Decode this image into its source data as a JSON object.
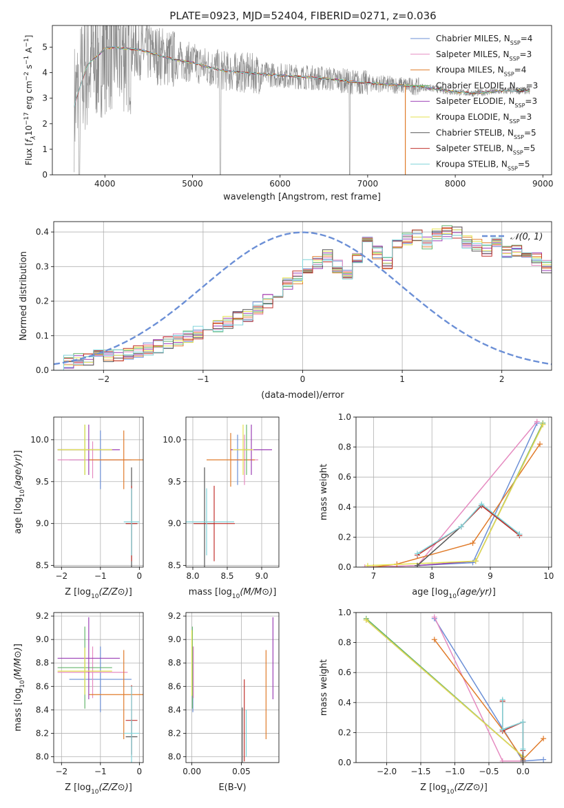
{
  "figure_title": "PLATE=0923, MJD=52404, FIBERID=0271, z=0.036",
  "colors": {
    "chabrier_miles": "#6b8fd6",
    "salpeter_miles": "#e58ac0",
    "kroupa_miles": "#e07b2a",
    "chabrier_elodie": "#63b46b",
    "salpeter_elodie": "#9b3fb5",
    "kroupa_elodie": "#e4e24d",
    "chabrier_stelib": "#555555",
    "salpeter_stelib": "#c0302b",
    "kroupa_stelib": "#7fd3d9",
    "observed": "#888888",
    "normal": "#6b8fd6"
  },
  "chart_data": [
    {
      "id": "spectrum",
      "type": "line",
      "title": "PLATE=0923, MJD=52404, FIBERID=0271, z=0.036",
      "xlabel": "wavelength [Angstrom, rest frame]",
      "ylabel": "Flux [f_λ 10^-17 erg cm^-2 s^-1 A^-1]",
      "xlim": [
        3400,
        9100
      ],
      "ylim": [
        0,
        5.85
      ],
      "xticks": [
        4000,
        5000,
        6000,
        7000,
        8000,
        9000
      ],
      "yticks": [
        0,
        1,
        2,
        3,
        4,
        5
      ],
      "legend_position": "top-right",
      "legend": [
        {
          "label": "Chabrier MILES, N",
          "sub": "SSP",
          "suffix": "=4",
          "color_key": "chabrier_miles"
        },
        {
          "label": "Salpeter MILES, N",
          "sub": "SSP",
          "suffix": "=3",
          "color_key": "salpeter_miles"
        },
        {
          "label": "Kroupa MILES, N",
          "sub": "SSP",
          "suffix": "=4",
          "color_key": "kroupa_miles"
        },
        {
          "label": "Chabrier ELODIE, N",
          "sub": "SSP",
          "suffix": "=3",
          "color_key": "chabrier_elodie"
        },
        {
          "label": "Salpeter ELODIE, N",
          "sub": "SSP",
          "suffix": "=3",
          "color_key": "salpeter_elodie"
        },
        {
          "label": "Kroupa ELODIE, N",
          "sub": "SSP",
          "suffix": "=3",
          "color_key": "kroupa_elodie"
        },
        {
          "label": "Chabrier STELIB, N",
          "sub": "SSP",
          "suffix": "=5",
          "color_key": "chabrier_stelib"
        },
        {
          "label": "Salpeter STELIB, N",
          "sub": "SSP",
          "suffix": "=5",
          "color_key": "salpeter_stelib"
        },
        {
          "label": "Kroupa STELIB, N",
          "sub": "SSP",
          "suffix": "=5",
          "color_key": "kroupa_stelib"
        }
      ],
      "model_x": [
        3650,
        3700,
        3800,
        3900,
        4000,
        4100,
        4200,
        4400,
        4600,
        4800,
        5000,
        5200,
        5400,
        5600,
        5800,
        6000,
        6200,
        6400,
        6600,
        6800,
        7000,
        7200,
        7400,
        7600,
        7800,
        8000,
        8200,
        8400,
        8600,
        8800
      ],
      "model_y": [
        2.7,
        3.3,
        4.3,
        4.6,
        4.95,
        5.0,
        4.95,
        4.9,
        4.7,
        4.5,
        4.4,
        4.2,
        4.05,
        4.0,
        3.95,
        3.9,
        3.85,
        3.8,
        3.75,
        3.65,
        3.6,
        3.55,
        3.5,
        3.45,
        3.35,
        3.25,
        3.2,
        3.25,
        3.3,
        3.3
      ]
    },
    {
      "id": "residuals",
      "type": "histogram",
      "xlabel": "(data-model)/error",
      "ylabel": "Normed distribution",
      "xlim": [
        -2.5,
        2.5
      ],
      "ylim": [
        0,
        0.43
      ],
      "xticks": [
        -2,
        -1,
        0,
        1,
        2
      ],
      "yticks": [
        0.0,
        0.1,
        0.2,
        0.3,
        0.4
      ],
      "legend_position": "top-right",
      "legend": [
        "𝒩(0, 1)"
      ],
      "bin_width": 0.1,
      "base_values": [
        0.02,
        0.025,
        0.03,
        0.035,
        0.04,
        0.04,
        0.045,
        0.05,
        0.055,
        0.06,
        0.07,
        0.08,
        0.09,
        0.1,
        0.11,
        0.12,
        0.13,
        0.14,
        0.15,
        0.16,
        0.18,
        0.2,
        0.22,
        0.25,
        0.27,
        0.3,
        0.31,
        0.33,
        0.3,
        0.28,
        0.33,
        0.38,
        0.34,
        0.31,
        0.36,
        0.38,
        0.39,
        0.37,
        0.39,
        0.4,
        0.4,
        0.37,
        0.36,
        0.35,
        0.37,
        0.34,
        0.35,
        0.33,
        0.32,
        0.3,
        0.27,
        0.25,
        0.23,
        0.22,
        0.2,
        0.18,
        0.16,
        0.15,
        0.14,
        0.13,
        0.12,
        0.11,
        0.1,
        0.09,
        0.08,
        0.075,
        0.07,
        0.06,
        0.055,
        0.05,
        0.045,
        0.04,
        0.035,
        0.03,
        0.025,
        0.025,
        0.02,
        0.02,
        0.02,
        0.02,
        0.02,
        0.02,
        0.02,
        0.02,
        0.02,
        0.02,
        0.02,
        0.02,
        0.02,
        0.02,
        0.02,
        0.02,
        0.02,
        0.02,
        0.02,
        0.02,
        0.02,
        0.02,
        0.02,
        0.02
      ],
      "normal": {
        "mean": 0,
        "sd": 1
      }
    },
    {
      "id": "age_vs_z",
      "type": "errorbar",
      "xlabel": "Z [log10(Z/Z⊙)]",
      "ylabel": "age [log10(age/yr)]",
      "xlim": [
        -2.2,
        0.1
      ],
      "ylim": [
        8.48,
        10.27
      ],
      "xticks": [
        -2,
        -1,
        0
      ],
      "yticks": [
        8.5,
        9.0,
        9.5,
        10.0
      ],
      "points": [
        {
          "key": "chabrier_miles",
          "x": -1.0,
          "y": 9.76,
          "xerr": 0.8,
          "yerr": 0.35
        },
        {
          "key": "salpeter_miles",
          "x": -1.2,
          "y": 9.76,
          "xerr": 0.9,
          "yerr": 0.22
        },
        {
          "key": "kroupa_miles",
          "x": -0.4,
          "y": 9.76,
          "xerr": 0.9,
          "yerr": 0.35
        },
        {
          "key": "chabrier_elodie",
          "x": -1.4,
          "y": 9.88,
          "xerr": 0.7,
          "yerr": 0.3
        },
        {
          "key": "salpeter_elodie",
          "x": -1.3,
          "y": 9.88,
          "xerr": 0.8,
          "yerr": 0.3
        },
        {
          "key": "kroupa_elodie",
          "x": -1.4,
          "y": 9.88,
          "xerr": 0.7,
          "yerr": 0.3
        },
        {
          "key": "chabrier_stelib",
          "x": -0.2,
          "y": 9.0,
          "xerr": 0.15,
          "yerr": 0.67
        },
        {
          "key": "salpeter_stelib",
          "x": -0.2,
          "y": 9.0,
          "xerr": 0.15,
          "yerr": 0.45
        },
        {
          "key": "kroupa_stelib",
          "x": -0.2,
          "y": 9.02,
          "xerr": 0.2,
          "yerr": 0.4
        }
      ]
    },
    {
      "id": "age_vs_mass",
      "type": "errorbar",
      "xlabel": "mass [log10(M/M⊙)]",
      "ylabel": "",
      "xlim": [
        7.9,
        9.25
      ],
      "ylim": [
        8.48,
        10.27
      ],
      "xticks": [
        8.0,
        8.5,
        9.0
      ],
      "yticks": [
        8.5,
        9.0,
        9.5,
        10.0
      ],
      "points": [
        {
          "key": "chabrier_miles",
          "x": 8.65,
          "y": 9.76,
          "xerr": 0.1,
          "yerr": 0.3
        },
        {
          "key": "salpeter_miles",
          "x": 8.75,
          "y": 9.76,
          "xerr": 0.2,
          "yerr": 0.3
        },
        {
          "key": "kroupa_miles",
          "x": 8.55,
          "y": 9.76,
          "xerr": 0.35,
          "yerr": 0.32
        },
        {
          "key": "chabrier_elodie",
          "x": 8.78,
          "y": 9.88,
          "xerr": 0.05,
          "yerr": 0.3
        },
        {
          "key": "salpeter_elodie",
          "x": 8.85,
          "y": 9.88,
          "xerr": 0.3,
          "yerr": 0.3
        },
        {
          "key": "kroupa_elodie",
          "x": 8.73,
          "y": 9.88,
          "xerr": 0.15,
          "yerr": 0.3
        },
        {
          "key": "chabrier_stelib",
          "x": 8.17,
          "y": 9.0,
          "xerr": 0.15,
          "yerr": 0.67
        },
        {
          "key": "salpeter_stelib",
          "x": 8.31,
          "y": 9.0,
          "xerr": 0.3,
          "yerr": 0.45
        },
        {
          "key": "kroupa_stelib",
          "x": 8.2,
          "y": 9.02,
          "xerr": 0.4,
          "yerr": 0.4
        }
      ]
    },
    {
      "id": "mass_weight_vs_age",
      "type": "line",
      "xlabel": "age [log10(age/yr)]",
      "ylabel": "mass weight",
      "xlim": [
        6.7,
        10.05
      ],
      "ylim": [
        0,
        1.0
      ],
      "xticks": [
        7,
        8,
        9,
        10
      ],
      "yticks": [
        0.0,
        0.2,
        0.4,
        0.6,
        0.8,
        1.0
      ],
      "series": [
        {
          "key": "chabrier_miles",
          "x": [
            6.9,
            7.75,
            8.7,
            9.8
          ],
          "y": [
            0.0,
            0.01,
            0.03,
            0.96
          ]
        },
        {
          "key": "salpeter_miles",
          "x": [
            6.85,
            7.75,
            9.8
          ],
          "y": [
            0.0,
            0.01,
            0.97
          ]
        },
        {
          "key": "kroupa_miles",
          "x": [
            7.0,
            7.4,
            8.7,
            9.85
          ],
          "y": [
            0.0,
            0.02,
            0.16,
            0.82
          ]
        },
        {
          "key": "chabrier_elodie",
          "x": [
            7.75,
            8.75,
            9.9
          ],
          "y": [
            0.01,
            0.04,
            0.96
          ]
        },
        {
          "key": "salpeter_elodie",
          "x": [
            7.75,
            8.75,
            9.9
          ],
          "y": [
            0.01,
            0.04,
            0.95
          ]
        },
        {
          "key": "kroupa_elodie",
          "x": [
            6.9,
            8.75,
            9.9
          ],
          "y": [
            0.01,
            0.04,
            0.95
          ]
        },
        {
          "key": "chabrier_stelib",
          "x": [
            7.75,
            8.5,
            8.85,
            9.5
          ],
          "y": [
            0.01,
            0.27,
            0.41,
            0.22
          ]
        },
        {
          "key": "salpeter_stelib",
          "x": [
            7.75,
            8.5,
            8.85,
            9.5
          ],
          "y": [
            0.08,
            0.27,
            0.41,
            0.21
          ]
        },
        {
          "key": "kroupa_stelib",
          "x": [
            7.75,
            8.5,
            8.85,
            9.5
          ],
          "y": [
            0.09,
            0.27,
            0.42,
            0.22
          ]
        }
      ]
    },
    {
      "id": "mass_vs_z",
      "type": "errorbar",
      "xlabel": "Z [log10(Z/Z⊙)]",
      "ylabel": "mass [log10(M/M⊙)]",
      "xlim": [
        -2.2,
        0.1
      ],
      "ylim": [
        7.95,
        9.23
      ],
      "xticks": [
        -2,
        -1,
        0
      ],
      "yticks": [
        8.0,
        8.2,
        8.4,
        8.6,
        8.8,
        9.0,
        9.2
      ],
      "points": [
        {
          "key": "chabrier_miles",
          "x": -1.0,
          "y": 8.66,
          "xerr": 0.8,
          "yerr": 0.28
        },
        {
          "key": "salpeter_miles",
          "x": -1.2,
          "y": 8.72,
          "xerr": 0.9,
          "yerr": 0.22
        },
        {
          "key": "kroupa_miles",
          "x": -0.4,
          "y": 8.53,
          "xerr": 0.9,
          "yerr": 0.38
        },
        {
          "key": "chabrier_elodie",
          "x": -1.4,
          "y": 8.76,
          "xerr": 0.7,
          "yerr": 0.35
        },
        {
          "key": "salpeter_elodie",
          "x": -1.3,
          "y": 8.84,
          "xerr": 0.8,
          "yerr": 0.35
        },
        {
          "key": "kroupa_elodie",
          "x": -1.4,
          "y": 8.73,
          "xerr": 0.7,
          "yerr": 0.2
        },
        {
          "key": "chabrier_stelib",
          "x": -0.2,
          "y": 8.17,
          "xerr": 0.15,
          "yerr": 0.15
        },
        {
          "key": "salpeter_stelib",
          "x": -0.2,
          "y": 8.31,
          "xerr": 0.15,
          "yerr": 0.3
        },
        {
          "key": "kroupa_stelib",
          "x": -0.2,
          "y": 8.2,
          "xerr": 0.2,
          "yerr": 0.4
        }
      ]
    },
    {
      "id": "mass_vs_ebv",
      "type": "errorbar",
      "xlabel": "E(B-V)",
      "ylabel": "",
      "xlim": [
        -0.006,
        0.088
      ],
      "ylim": [
        7.95,
        9.23
      ],
      "xticks": [
        0.0,
        0.05
      ],
      "yticks": [
        8.0,
        8.2,
        8.4,
        8.6,
        8.8,
        9.0,
        9.2
      ],
      "points": [
        {
          "key": "chabrier_miles",
          "x": 0.001,
          "y": 8.66,
          "xerr": 0,
          "yerr": 0.28
        },
        {
          "key": "salpeter_miles",
          "x": 0.0015,
          "y": 8.72,
          "xerr": 0,
          "yerr": 0.22
        },
        {
          "key": "kroupa_miles",
          "x": 0.075,
          "y": 8.53,
          "xerr": 0,
          "yerr": 0.38
        },
        {
          "key": "chabrier_elodie",
          "x": 0.0005,
          "y": 8.76,
          "xerr": 0,
          "yerr": 0.35
        },
        {
          "key": "salpeter_elodie",
          "x": 0.082,
          "y": 8.84,
          "xerr": 0,
          "yerr": 0.35
        },
        {
          "key": "kroupa_elodie",
          "x": 0.0,
          "y": 8.8,
          "xerr": 0,
          "yerr": 0.28
        },
        {
          "key": "chabrier_stelib",
          "x": 0.051,
          "y": 8.17,
          "xerr": 0,
          "yerr": 0.25
        },
        {
          "key": "salpeter_stelib",
          "x": 0.053,
          "y": 8.31,
          "xerr": 0,
          "yerr": 0.35
        },
        {
          "key": "kroupa_stelib",
          "x": 0.055,
          "y": 8.2,
          "xerr": 0,
          "yerr": 0.2
        }
      ]
    },
    {
      "id": "mass_weight_vs_z",
      "type": "line",
      "xlabel": "Z [log10(Z/Z⊙)]",
      "ylabel": "mass weight",
      "xlim": [
        -2.45,
        0.42
      ],
      "ylim": [
        0,
        1.0
      ],
      "xticks": [
        -2.0,
        -1.5,
        -1.0,
        -0.5,
        0.0
      ],
      "yticks": [
        0.0,
        0.2,
        0.4,
        0.6,
        0.8,
        1.0
      ],
      "series": [
        {
          "key": "chabrier_miles",
          "x": [
            -1.3,
            0.0,
            0.3
          ],
          "y": [
            0.96,
            0.01,
            0.02
          ]
        },
        {
          "key": "salpeter_miles",
          "x": [
            -1.3,
            -0.3,
            0.0
          ],
          "y": [
            0.97,
            0.01,
            0.01
          ]
        },
        {
          "key": "kroupa_miles",
          "x": [
            -1.3,
            -0.3,
            0.0,
            0.3
          ],
          "y": [
            0.82,
            0.22,
            0.02,
            0.16
          ]
        },
        {
          "key": "chabrier_elodie",
          "x": [
            -2.3,
            0.0
          ],
          "y": [
            0.96,
            0.04
          ]
        },
        {
          "key": "salpeter_elodie",
          "x": [
            -2.3,
            0.0
          ],
          "y": [
            0.95,
            0.04
          ]
        },
        {
          "key": "kroupa_elodie",
          "x": [
            -2.3,
            0.0
          ],
          "y": [
            0.95,
            0.04
          ]
        },
        {
          "key": "chabrier_stelib",
          "x": [
            -0.3,
            -0.3,
            0.0,
            0.0
          ],
          "y": [
            0.41,
            0.22,
            0.27,
            0.01
          ]
        },
        {
          "key": "salpeter_stelib",
          "x": [
            -0.3,
            -0.3,
            0.0,
            0.0
          ],
          "y": [
            0.41,
            0.21,
            0.27,
            0.08
          ]
        },
        {
          "key": "kroupa_stelib",
          "x": [
            -0.3,
            -0.3,
            0.0,
            0.0
          ],
          "y": [
            0.42,
            0.22,
            0.27,
            0.09
          ]
        }
      ]
    }
  ]
}
